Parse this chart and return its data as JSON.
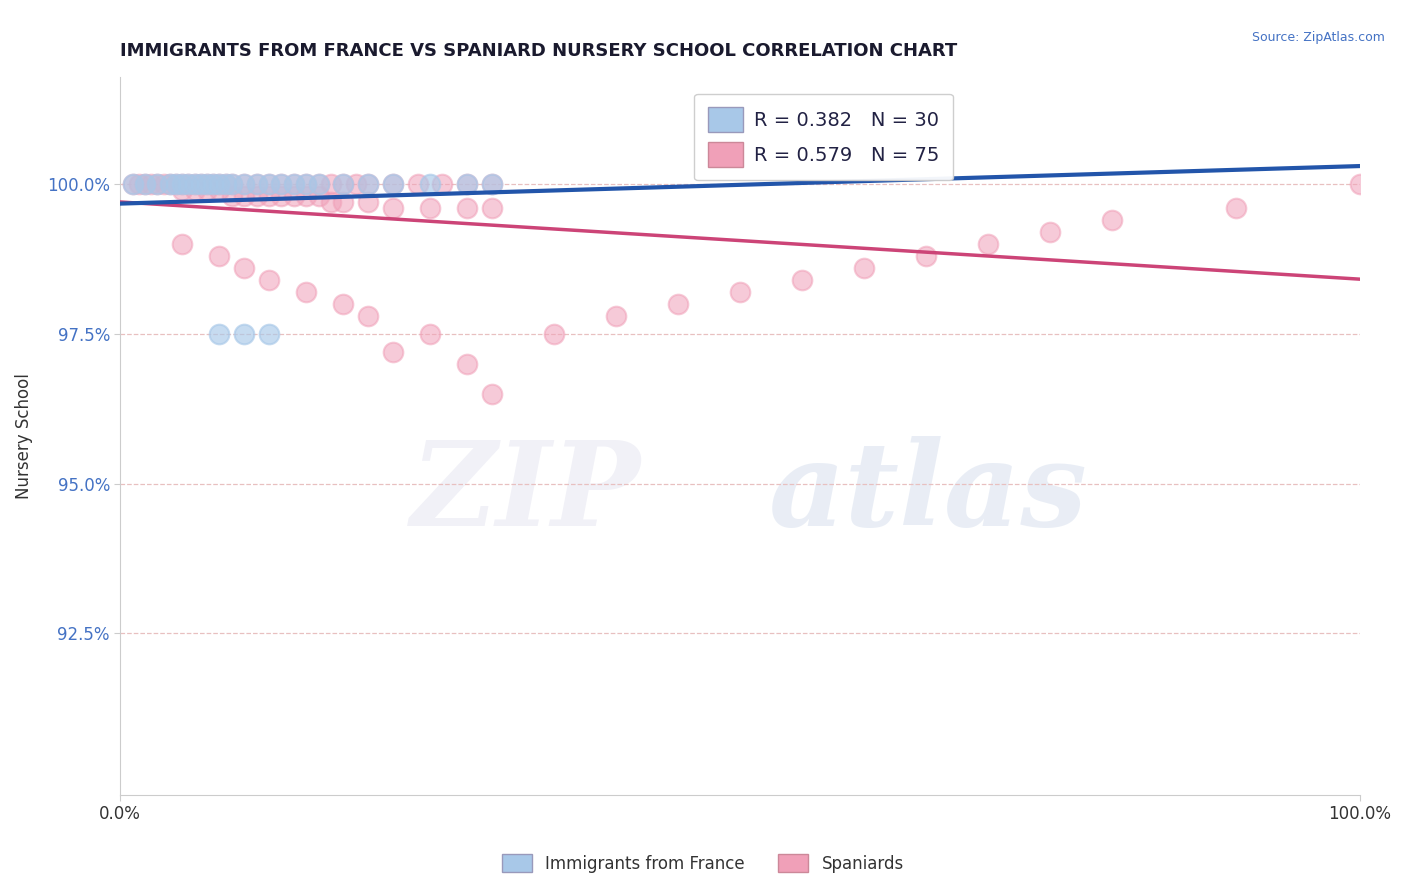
{
  "title": "IMMIGRANTS FROM FRANCE VS SPANIARD NURSERY SCHOOL CORRELATION CHART",
  "source_text": "Source: ZipAtlas.com",
  "ylabel": "Nursery School",
  "x_min": 0.0,
  "x_max": 1.0,
  "y_min": 0.898,
  "y_max": 1.018,
  "yticks": [
    0.925,
    0.95,
    0.975,
    1.0
  ],
  "ytick_labels": [
    "92.5%",
    "95.0%",
    "97.5%",
    "100.0%"
  ],
  "xticks": [
    0.0,
    1.0
  ],
  "xtick_labels": [
    "0.0%",
    "100.0%"
  ],
  "blue_R": 0.382,
  "blue_N": 30,
  "pink_R": 0.579,
  "pink_N": 75,
  "blue_color": "#A8C8E8",
  "pink_color": "#F0A0B8",
  "blue_line_color": "#2255AA",
  "pink_line_color": "#CC4477",
  "legend_label_blue": "Immigrants from France",
  "legend_label_pink": "Spaniards",
  "blue_x": [
    0.01,
    0.02,
    0.03,
    0.04,
    0.045,
    0.05,
    0.055,
    0.06,
    0.065,
    0.07,
    0.075,
    0.08,
    0.085,
    0.09,
    0.1,
    0.11,
    0.12,
    0.13,
    0.14,
    0.15,
    0.16,
    0.18,
    0.2,
    0.22,
    0.25,
    0.28,
    0.3,
    0.08,
    0.1,
    0.12
  ],
  "blue_y": [
    1.0,
    1.0,
    1.0,
    1.0,
    1.0,
    1.0,
    1.0,
    1.0,
    1.0,
    1.0,
    1.0,
    1.0,
    1.0,
    1.0,
    1.0,
    1.0,
    1.0,
    1.0,
    1.0,
    1.0,
    1.0,
    1.0,
    1.0,
    1.0,
    1.0,
    1.0,
    1.0,
    0.975,
    0.975,
    0.975
  ],
  "pink_x": [
    0.01,
    0.015,
    0.02,
    0.025,
    0.03,
    0.035,
    0.04,
    0.045,
    0.05,
    0.055,
    0.06,
    0.065,
    0.07,
    0.075,
    0.08,
    0.085,
    0.09,
    0.1,
    0.11,
    0.12,
    0.13,
    0.14,
    0.15,
    0.16,
    0.17,
    0.18,
    0.19,
    0.2,
    0.22,
    0.24,
    0.26,
    0.28,
    0.3,
    0.05,
    0.06,
    0.07,
    0.08,
    0.09,
    0.1,
    0.11,
    0.12,
    0.13,
    0.14,
    0.15,
    0.16,
    0.17,
    0.18,
    0.2,
    0.22,
    0.25,
    0.28,
    0.3,
    0.05,
    0.08,
    0.1,
    0.12,
    0.15,
    0.18,
    0.2,
    0.25,
    0.22,
    0.28,
    0.3,
    0.35,
    0.4,
    0.45,
    0.5,
    0.55,
    0.6,
    0.65,
    0.7,
    0.75,
    0.8,
    0.9,
    1.0
  ],
  "pink_y": [
    1.0,
    1.0,
    1.0,
    1.0,
    1.0,
    1.0,
    1.0,
    1.0,
    1.0,
    1.0,
    1.0,
    1.0,
    1.0,
    1.0,
    1.0,
    1.0,
    1.0,
    1.0,
    1.0,
    1.0,
    1.0,
    1.0,
    1.0,
    1.0,
    1.0,
    1.0,
    1.0,
    1.0,
    1.0,
    1.0,
    1.0,
    1.0,
    1.0,
    0.999,
    0.999,
    0.999,
    0.999,
    0.998,
    0.998,
    0.998,
    0.998,
    0.998,
    0.998,
    0.998,
    0.998,
    0.997,
    0.997,
    0.997,
    0.996,
    0.996,
    0.996,
    0.996,
    0.99,
    0.988,
    0.986,
    0.984,
    0.982,
    0.98,
    0.978,
    0.975,
    0.972,
    0.97,
    0.965,
    0.975,
    0.978,
    0.98,
    0.982,
    0.984,
    0.986,
    0.988,
    0.99,
    0.992,
    0.994,
    0.996,
    1.0
  ],
  "grid_color": "#E8C0C0",
  "spine_color": "#cccccc"
}
